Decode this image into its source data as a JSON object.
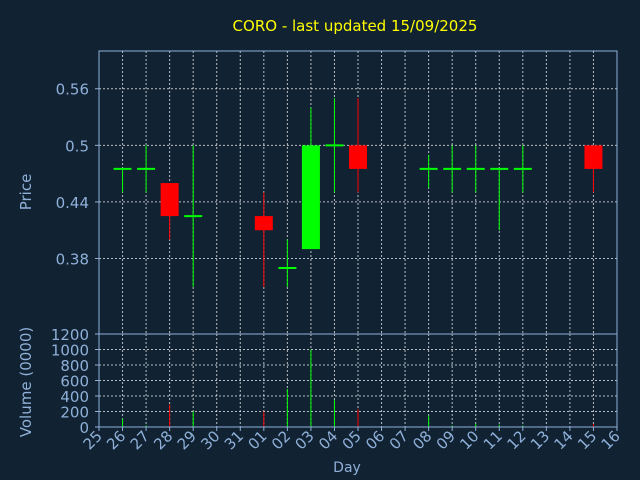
{
  "chart_data": [
    {
      "type": "candlestick",
      "title": "CORO - last updated 15/09/2025",
      "ylabel": "Price",
      "ylim": [
        0.3,
        0.6
      ],
      "yticks": [
        0.38,
        0.44,
        0.5,
        0.56
      ],
      "ytick_labels": [
        "0.38",
        "0.44",
        "0.5",
        "0.56"
      ],
      "grid": true,
      "x": [
        "25",
        "26",
        "27",
        "28",
        "29",
        "30",
        "31",
        "01",
        "02",
        "03",
        "04",
        "05",
        "06",
        "07",
        "08",
        "09",
        "10",
        "11",
        "12",
        "13",
        "14",
        "15",
        "16"
      ],
      "candles": [
        {
          "day": "26",
          "open": 0.475,
          "high": 0.475,
          "low": 0.45,
          "close": 0.475
        },
        {
          "day": "27",
          "open": 0.475,
          "high": 0.5,
          "low": 0.45,
          "close": 0.475
        },
        {
          "day": "28",
          "open": 0.46,
          "high": 0.46,
          "low": 0.4,
          "close": 0.425
        },
        {
          "day": "29",
          "open": 0.425,
          "high": 0.5,
          "low": 0.35,
          "close": 0.425
        },
        {
          "day": "01",
          "open": 0.425,
          "high": 0.45,
          "low": 0.35,
          "close": 0.41
        },
        {
          "day": "02",
          "open": 0.37,
          "high": 0.4,
          "low": 0.35,
          "close": 0.37
        },
        {
          "day": "03",
          "open": 0.39,
          "high": 0.54,
          "low": 0.39,
          "close": 0.5
        },
        {
          "day": "04",
          "open": 0.5,
          "high": 0.55,
          "low": 0.45,
          "close": 0.5
        },
        {
          "day": "05",
          "open": 0.5,
          "high": 0.55,
          "low": 0.45,
          "close": 0.475
        },
        {
          "day": "08",
          "open": 0.475,
          "high": 0.49,
          "low": 0.455,
          "close": 0.475
        },
        {
          "day": "09",
          "open": 0.475,
          "high": 0.5,
          "low": 0.45,
          "close": 0.475
        },
        {
          "day": "10",
          "open": 0.475,
          "high": 0.5,
          "low": 0.45,
          "close": 0.475
        },
        {
          "day": "11",
          "open": 0.475,
          "high": 0.475,
          "low": 0.41,
          "close": 0.475
        },
        {
          "day": "12",
          "open": 0.475,
          "high": 0.5,
          "low": 0.45,
          "close": 0.475
        },
        {
          "day": "15",
          "open": 0.5,
          "high": 0.5,
          "low": 0.45,
          "close": 0.475
        }
      ],
      "colors": {
        "up": "#00ff00",
        "down": "#ff0000",
        "title": "#ffff00",
        "axis_text": "#8fb0d8",
        "grid": "#ffffff",
        "background": "#112233"
      }
    },
    {
      "type": "bar",
      "xlabel": "Day",
      "ylabel": "Volume (0000)",
      "ylim": [
        0,
        1200
      ],
      "yticks": [
        0,
        200,
        400,
        600,
        800,
        1000,
        1200
      ],
      "ytick_labels": [
        "0",
        "200",
        "400",
        "600",
        "800",
        "1000",
        "1200"
      ],
      "grid": true,
      "categories": [
        "25",
        "26",
        "27",
        "28",
        "29",
        "30",
        "31",
        "01",
        "02",
        "03",
        "04",
        "05",
        "06",
        "07",
        "08",
        "09",
        "10",
        "11",
        "12",
        "13",
        "14",
        "15",
        "16"
      ],
      "values": [
        0,
        110,
        20,
        290,
        200,
        0,
        0,
        200,
        490,
        1000,
        350,
        230,
        0,
        0,
        150,
        20,
        40,
        30,
        20,
        0,
        0,
        40,
        0
      ],
      "bar_colors": [
        "#00ff00",
        "#00ff00",
        "#00ff00",
        "#ff0000",
        "#00ff00",
        "#00ff00",
        "#00ff00",
        "#ff0000",
        "#00ff00",
        "#00ff00",
        "#00ff00",
        "#ff0000",
        "#00ff00",
        "#00ff00",
        "#00ff00",
        "#00ff00",
        "#00ff00",
        "#00ff00",
        "#00ff00",
        "#00ff00",
        "#00ff00",
        "#ff0000",
        "#00ff00"
      ]
    }
  ]
}
